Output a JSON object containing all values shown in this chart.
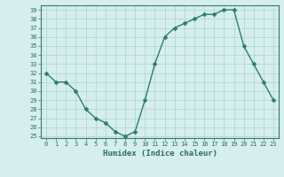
{
  "x": [
    0,
    1,
    2,
    3,
    4,
    5,
    6,
    7,
    8,
    9,
    10,
    11,
    12,
    13,
    14,
    15,
    16,
    17,
    18,
    19,
    20,
    21,
    22,
    23
  ],
  "y": [
    32,
    31,
    31,
    30,
    28,
    27,
    26.5,
    25.5,
    25,
    25.5,
    29,
    33,
    36,
    37,
    37.5,
    38,
    38.5,
    38.5,
    39,
    39,
    35,
    33,
    31,
    29
  ],
  "xlabel": "Humidex (Indice chaleur)",
  "ylim": [
    24.8,
    39.5
  ],
  "xlim": [
    -0.5,
    23.5
  ],
  "yticks": [
    25,
    26,
    27,
    28,
    29,
    30,
    31,
    32,
    33,
    34,
    35,
    36,
    37,
    38,
    39
  ],
  "xticks": [
    0,
    1,
    2,
    3,
    4,
    5,
    6,
    7,
    8,
    9,
    10,
    11,
    12,
    13,
    14,
    15,
    16,
    17,
    18,
    19,
    20,
    21,
    22,
    23
  ],
  "line_color": "#2e7d6e",
  "marker_color": "#2e7d6e",
  "bg_color": "#d6eeee",
  "grid_color": "#aad4d4",
  "tick_label_color": "#2e6e60",
  "xlabel_color": "#2e6e60",
  "xlabel_fontsize": 6.5,
  "tick_fontsize": 5,
  "linewidth": 1.0,
  "markersize": 2.5
}
